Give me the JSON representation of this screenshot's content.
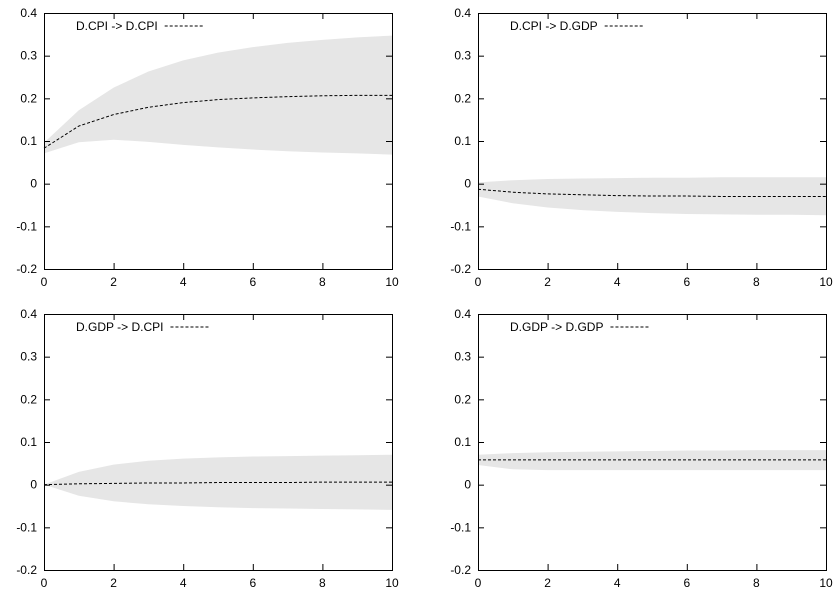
{
  "chart_data": [
    {
      "type": "line",
      "legend": "D.CPI -> D.CPI",
      "legend_position": "top-left",
      "x": [
        0,
        1,
        2,
        3,
        4,
        5,
        6,
        7,
        8,
        9,
        10
      ],
      "series": [
        {
          "line": [
            0.083,
            0.135,
            0.162,
            0.179,
            0.19,
            0.197,
            0.201,
            0.204,
            0.206,
            0.207,
            0.207
          ],
          "band_upper": [
            0.096,
            0.172,
            0.225,
            0.263,
            0.289,
            0.307,
            0.32,
            0.33,
            0.337,
            0.343,
            0.347
          ],
          "band_lower": [
            0.071,
            0.097,
            0.103,
            0.098,
            0.091,
            0.085,
            0.08,
            0.076,
            0.073,
            0.071,
            0.068
          ]
        }
      ],
      "xlim": [
        0,
        10
      ],
      "ylim": [
        -0.2,
        0.4
      ],
      "xticks": [
        "0",
        "2",
        "4",
        "6",
        "8",
        "10"
      ],
      "yticks": [
        "-0.2",
        "-0.1",
        "0",
        "0.1",
        "0.2",
        "0.3",
        "0.4"
      ],
      "grid": false,
      "band_color": "#e6e6e6"
    },
    {
      "type": "line",
      "legend": "D.CPI -> D.GDP",
      "legend_position": "top-left",
      "x": [
        0,
        1,
        2,
        3,
        4,
        5,
        6,
        7,
        8,
        9,
        10
      ],
      "series": [
        {
          "line": [
            -0.013,
            -0.02,
            -0.024,
            -0.026,
            -0.028,
            -0.029,
            -0.029,
            -0.03,
            -0.03,
            -0.03,
            -0.03
          ],
          "band_upper": [
            0.003,
            0.008,
            0.011,
            0.012,
            0.013,
            0.014,
            0.014,
            0.015,
            0.015,
            0.015,
            0.015
          ],
          "band_lower": [
            -0.03,
            -0.046,
            -0.056,
            -0.062,
            -0.066,
            -0.069,
            -0.071,
            -0.072,
            -0.073,
            -0.073,
            -0.074
          ]
        }
      ],
      "xlim": [
        0,
        10
      ],
      "ylim": [
        -0.2,
        0.4
      ],
      "xticks": [
        "0",
        "2",
        "4",
        "6",
        "8",
        "10"
      ],
      "yticks": [
        "-0.2",
        "-0.1",
        "0",
        "0.1",
        "0.2",
        "0.3",
        "0.4"
      ],
      "grid": false,
      "band_color": "#e6e6e6"
    },
    {
      "type": "line",
      "legend": "D.GDP -> D.CPI",
      "legend_position": "top-left",
      "x": [
        0,
        1,
        2,
        3,
        4,
        5,
        6,
        7,
        8,
        9,
        10
      ],
      "series": [
        {
          "line": [
            0.0,
            0.002,
            0.003,
            0.004,
            0.004,
            0.005,
            0.005,
            0.005,
            0.006,
            0.006,
            0.006
          ],
          "band_upper": [
            0.0,
            0.03,
            0.047,
            0.056,
            0.061,
            0.064,
            0.066,
            0.067,
            0.068,
            0.069,
            0.07
          ],
          "band_lower": [
            0.0,
            -0.026,
            -0.039,
            -0.046,
            -0.05,
            -0.053,
            -0.055,
            -0.056,
            -0.057,
            -0.058,
            -0.059
          ]
        }
      ],
      "xlim": [
        0,
        10
      ],
      "ylim": [
        -0.2,
        0.4
      ],
      "xticks": [
        "0",
        "2",
        "4",
        "6",
        "8",
        "10"
      ],
      "yticks": [
        "-0.2",
        "-0.1",
        "0",
        "0.1",
        "0.2",
        "0.3",
        "0.4"
      ],
      "grid": false,
      "band_color": "#e6e6e6"
    },
    {
      "type": "line",
      "legend": "D.GDP -> D.GDP",
      "legend_position": "top-left",
      "x": [
        0,
        1,
        2,
        3,
        4,
        5,
        6,
        7,
        8,
        9,
        10
      ],
      "series": [
        {
          "line": [
            0.058,
            0.058,
            0.058,
            0.058,
            0.058,
            0.058,
            0.058,
            0.058,
            0.058,
            0.058,
            0.058
          ],
          "band_upper": [
            0.07,
            0.074,
            0.076,
            0.077,
            0.078,
            0.079,
            0.08,
            0.08,
            0.081,
            0.081,
            0.081
          ],
          "band_lower": [
            0.046,
            0.036,
            0.034,
            0.034,
            0.034,
            0.034,
            0.034,
            0.034,
            0.034,
            0.034,
            0.034
          ]
        }
      ],
      "xlim": [
        0,
        10
      ],
      "ylim": [
        -0.2,
        0.4
      ],
      "xticks": [
        "0",
        "2",
        "4",
        "6",
        "8",
        "10"
      ],
      "yticks": [
        "-0.2",
        "-0.1",
        "0",
        "0.1",
        "0.2",
        "0.3",
        "0.4"
      ],
      "grid": false,
      "band_color": "#e6e6e6"
    }
  ]
}
